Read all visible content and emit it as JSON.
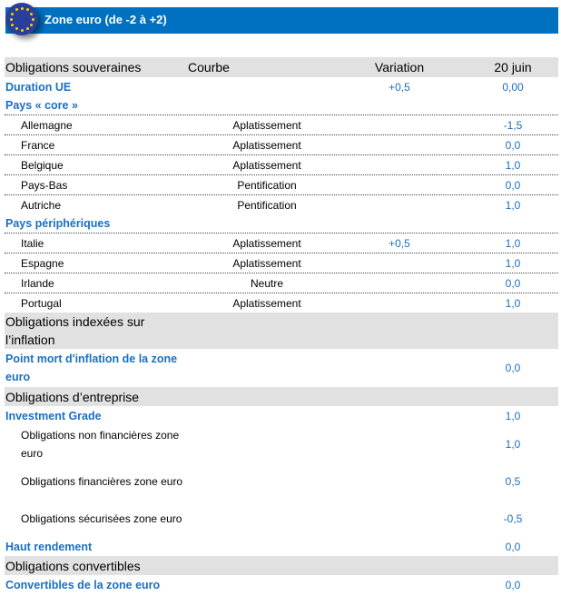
{
  "banner": {
    "title": "Zone euro (de -2 à +2)",
    "icon": "eu-flag-icon"
  },
  "header": {
    "col0": "Obligations souveraines",
    "col1": "Courbe",
    "col2": "Variation",
    "col3": "20 juin"
  },
  "rows": [
    {
      "type": "group",
      "label": "Duration  UE",
      "curve": "",
      "variation": "+0,5",
      "value": "0,00"
    },
    {
      "type": "group line",
      "label": "Pays « core »",
      "curve": "",
      "variation": "",
      "value": ""
    },
    {
      "type": "item",
      "label": "Allemagne",
      "curve": "Aplatissement",
      "variation": "",
      "value": "-1,5"
    },
    {
      "type": "item",
      "label": "France",
      "curve": "Aplatissement",
      "variation": "",
      "value": "0,0"
    },
    {
      "type": "item",
      "label": "Belgique",
      "curve": "Aplatissement",
      "variation": "",
      "value": "1,0"
    },
    {
      "type": "item",
      "label": "Pays-Bas",
      "curve": "Pentification",
      "variation": "",
      "value": "0,0"
    },
    {
      "type": "item last",
      "label": "Autriche",
      "curve": "Pentification",
      "variation": "",
      "value": "1,0"
    },
    {
      "type": "group line",
      "label": "Pays périphériques",
      "curve": "",
      "variation": "",
      "value": ""
    },
    {
      "type": "item",
      "label": "Italie",
      "curve": "Aplatissement",
      "variation": "+0,5",
      "value": "1,0"
    },
    {
      "type": "item",
      "label": "Espagne",
      "curve": "Aplatissement",
      "variation": "",
      "value": "1,0"
    },
    {
      "type": "item",
      "label": "Irlande",
      "curve": "Neutre",
      "variation": "",
      "value": "0,0"
    },
    {
      "type": "item last",
      "label": "Portugal",
      "curve": "Aplatissement",
      "variation": "",
      "value": "1,0"
    },
    {
      "type": "section two",
      "label": "Obligations indexées sur l’inflation",
      "curve": "",
      "variation": "",
      "value": ""
    },
    {
      "type": "group two",
      "label": "Point mort d'inflation de la zone euro",
      "curve": "",
      "variation": "",
      "value": "0,0"
    },
    {
      "type": "section",
      "label": "Obligations d’entreprise",
      "curve": "",
      "variation": "",
      "value": ""
    },
    {
      "type": "group",
      "label": "Investment  Grade",
      "curve": "",
      "variation": "",
      "value": "1,0"
    },
    {
      "type": "item last two",
      "label": "Obligations non financières zone  euro",
      "curve": "",
      "variation": "",
      "value": "1,0"
    },
    {
      "type": "item last two",
      "label": "Obligations financières zone euro",
      "curve": "",
      "variation": "",
      "value": "0,5"
    },
    {
      "type": "item last two",
      "label": "Obligations sécurisées zone euro",
      "curve": "",
      "variation": "",
      "value": "-0,5"
    },
    {
      "type": "group",
      "label": "Haut rendement",
      "curve": "",
      "variation": "",
      "value": "0,0"
    },
    {
      "type": "section",
      "label": "Obligations convertibles",
      "curve": "",
      "variation": "",
      "value": ""
    },
    {
      "type": "group",
      "label": "Convertibles  de la zone euro",
      "curve": "",
      "variation": "",
      "value": "0,0"
    }
  ]
}
